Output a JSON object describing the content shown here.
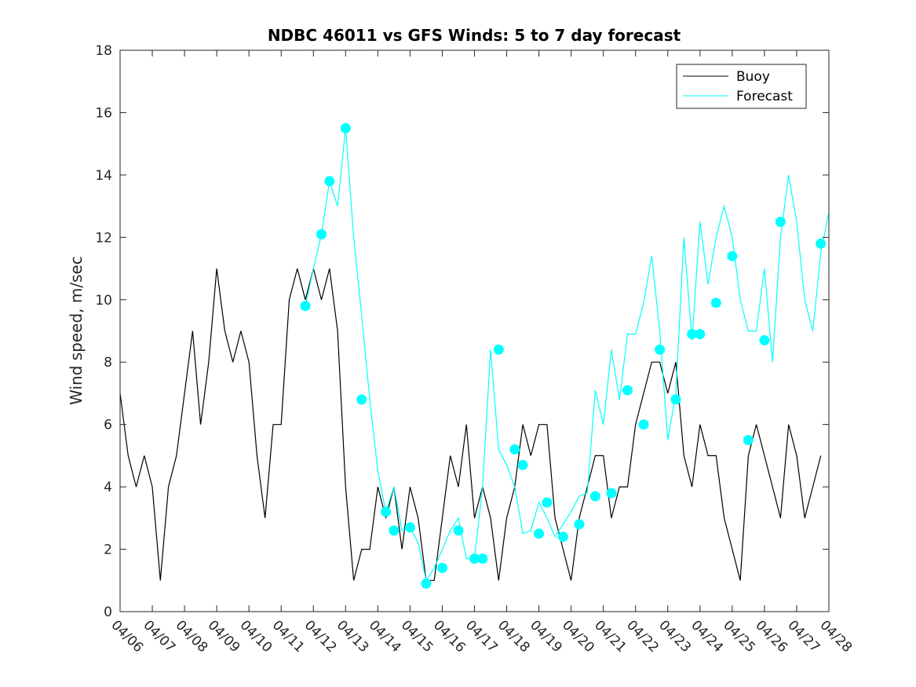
{
  "chart_data": {
    "type": "line",
    "title": "NDBC 46011 vs GFS Winds: 5 to 7 day forecast",
    "xlabel": "",
    "ylabel": "Wind speed, m/sec",
    "xlim": [
      "04/06",
      "04/28"
    ],
    "ylim": [
      0,
      18
    ],
    "y_ticks": [
      0,
      2,
      4,
      6,
      8,
      10,
      12,
      14,
      16,
      18
    ],
    "x_ticks": [
      "04/06",
      "04/07",
      "04/08",
      "04/09",
      "04/10",
      "04/11",
      "04/12",
      "04/13",
      "04/14",
      "04/15",
      "04/16",
      "04/17",
      "04/18",
      "04/19",
      "04/20",
      "04/21",
      "04/22",
      "04/23",
      "04/24",
      "04/25",
      "04/26",
      "04/27",
      "04/28"
    ],
    "grid": false,
    "legend": {
      "placement": "top-right",
      "entries": [
        "Buoy",
        "Forecast"
      ]
    },
    "colors": {
      "buoy": "#000000",
      "forecast": "#00ffff",
      "axis": "#262626"
    },
    "series": [
      {
        "name": "Buoy",
        "color": "#000000",
        "x": [
          "04/06",
          "04/06 06:00",
          "04/06 12:00",
          "04/06 18:00",
          "04/07",
          "04/07 06:00",
          "04/07 12:00",
          "04/07 18:00",
          "04/08",
          "04/08 06:00",
          "04/08 12:00",
          "04/08 18:00",
          "04/09",
          "04/09 06:00",
          "04/09 12:00",
          "04/09 18:00",
          "04/10",
          "04/10 06:00",
          "04/10 12:00",
          "04/10 18:00",
          "04/11",
          "04/11 06:00",
          "04/11 12:00",
          "04/11 18:00",
          "04/12",
          "04/12 06:00",
          "04/12 12:00",
          "04/12 18:00",
          "04/13",
          "04/13 06:00",
          "04/13 12:00",
          "04/13 18:00",
          "04/14",
          "04/14 06:00",
          "04/14 12:00",
          "04/14 18:00",
          "04/15",
          "04/15 06:00",
          "04/15 12:00",
          "04/15 18:00",
          "04/16",
          "04/16 06:00",
          "04/16 12:00",
          "04/16 18:00",
          "04/17",
          "04/17 06:00",
          "04/17 12:00",
          "04/17 18:00",
          "04/18",
          "04/18 06:00",
          "04/18 12:00",
          "04/18 18:00",
          "04/19",
          "04/19 06:00",
          "04/19 12:00",
          "04/19 18:00",
          "04/20",
          "04/20 06:00",
          "04/20 12:00",
          "04/20 18:00",
          "04/21",
          "04/21 06:00",
          "04/21 12:00",
          "04/21 18:00",
          "04/22",
          "04/22 06:00",
          "04/22 12:00",
          "04/22 18:00",
          "04/23",
          "04/23 06:00",
          "04/23 12:00",
          "04/23 18:00",
          "04/24",
          "04/24 06:00",
          "04/24 12:00",
          "04/24 18:00",
          "04/25",
          "04/25 06:00",
          "04/25 12:00",
          "04/25 18:00",
          "04/26",
          "04/26 06:00",
          "04/26 12:00",
          "04/26 18:00",
          "04/27",
          "04/27 06:00",
          "04/27 12:00",
          "04/27 18:00"
        ],
        "values": [
          7,
          5,
          4,
          5,
          4,
          1,
          4,
          5,
          7,
          9,
          6,
          8,
          11,
          9,
          8,
          9,
          8,
          5,
          3,
          6,
          6,
          10,
          11,
          10,
          11,
          10,
          11,
          9,
          4,
          1,
          2,
          2,
          4,
          3,
          4,
          2,
          4,
          3,
          1,
          1,
          3,
          5,
          4,
          6,
          3,
          4,
          3,
          1,
          3,
          4,
          6,
          5,
          6,
          6,
          3,
          2,
          1,
          3,
          4,
          5,
          5,
          3,
          4,
          4,
          6,
          7,
          8,
          8,
          7,
          8,
          5,
          4,
          6,
          5,
          5,
          3,
          2,
          1,
          5,
          6,
          5,
          4,
          3,
          6,
          5,
          3,
          4,
          5
        ]
      },
      {
        "name": "Forecast",
        "color": "#00ffff",
        "x": [
          "04/11 18:00",
          "04/12",
          "04/12 06:00",
          "04/12 12:00",
          "04/12 18:00",
          "04/13",
          "04/13 06:00",
          "04/13 12:00",
          "04/13 18:00",
          "04/14",
          "04/14 06:00",
          "04/14 12:00",
          "04/14 18:00",
          "04/15",
          "04/15 06:00",
          "04/15 12:00",
          "04/15 18:00",
          "04/16",
          "04/16 06:00",
          "04/16 12:00",
          "04/16 18:00",
          "04/17",
          "04/17 06:00",
          "04/17 12:00",
          "04/17 18:00",
          "04/18",
          "04/18 06:00",
          "04/18 12:00",
          "04/18 18:00",
          "04/19",
          "04/19 06:00",
          "04/19 12:00",
          "04/19 18:00",
          "04/20",
          "04/20 06:00",
          "04/20 12:00",
          "04/20 18:00",
          "04/21",
          "04/21 06:00",
          "04/21 12:00",
          "04/21 18:00",
          "04/22",
          "04/22 06:00",
          "04/22 12:00",
          "04/22 18:00",
          "04/23",
          "04/23 06:00",
          "04/23 12:00",
          "04/23 18:00",
          "04/24",
          "04/24 06:00",
          "04/24 12:00",
          "04/24 18:00",
          "04/25",
          "04/25 06:00",
          "04/25 12:00",
          "04/25 18:00",
          "04/26",
          "04/26 06:00",
          "04/26 12:00",
          "04/26 18:00",
          "04/27",
          "04/27 06:00",
          "04/27 12:00",
          "04/27 18:00",
          "04/28"
        ],
        "values": [
          9.8,
          11.0,
          12.1,
          13.8,
          13.0,
          15.5,
          12.0,
          9.5,
          6.8,
          4.5,
          3.2,
          4.0,
          2.6,
          2.7,
          2.2,
          1.0,
          1.4,
          2.0,
          2.6,
          3.0,
          1.7,
          1.7,
          4.0,
          8.4,
          5.2,
          4.7,
          4.0,
          2.5,
          2.6,
          3.5,
          3.0,
          2.4,
          2.8,
          3.2,
          3.7,
          3.8,
          7.1,
          6.0,
          8.4,
          6.8,
          8.9,
          8.9,
          9.9,
          11.4,
          9.0,
          5.5,
          7.0,
          12.0,
          8.7,
          12.5,
          10.5,
          12.0,
          13.0,
          12.0,
          10.0,
          9.0,
          9.0,
          11.0,
          8.0,
          12.0,
          14.0,
          12.5,
          10.0,
          9.0,
          11.5,
          12.8
        ]
      },
      {
        "name": "Forecast",
        "color": "#00ffff",
        "marker": "dot",
        "x": [
          "04/11 18:00",
          "04/12 06:00",
          "04/12 12:00",
          "04/13 00:00",
          "04/13 12:00",
          "04/14 06:00",
          "04/14 12:00",
          "04/15 00:00",
          "04/15 12:00",
          "04/16 00:00",
          "04/16 12:00",
          "04/17 00:00",
          "04/17 06:00",
          "04/17 18:00",
          "04/18 06:00",
          "04/18 12:00",
          "04/19 00:00",
          "04/19 06:00",
          "04/19 18:00",
          "04/20 06:00",
          "04/20 18:00",
          "04/21 06:00",
          "04/21 18:00",
          "04/22 06:00",
          "04/22 18:00",
          "04/23 06:00",
          "04/23 18:00",
          "04/24 00:00",
          "04/24 12:00",
          "04/25 00:00",
          "04/25 12:00",
          "04/26 00:00",
          "04/26 12:00",
          "04/27 18:00"
        ],
        "values": [
          9.8,
          12.1,
          13.8,
          15.5,
          6.8,
          3.2,
          2.6,
          2.7,
          0.9,
          1.4,
          2.6,
          1.7,
          1.7,
          8.4,
          5.2,
          4.7,
          2.5,
          3.5,
          2.4,
          2.8,
          3.7,
          3.8,
          7.1,
          6.0,
          8.4,
          6.8,
          8.9,
          8.9,
          9.9,
          11.4,
          5.5,
          8.7,
          12.5,
          11.8
        ]
      }
    ]
  }
}
